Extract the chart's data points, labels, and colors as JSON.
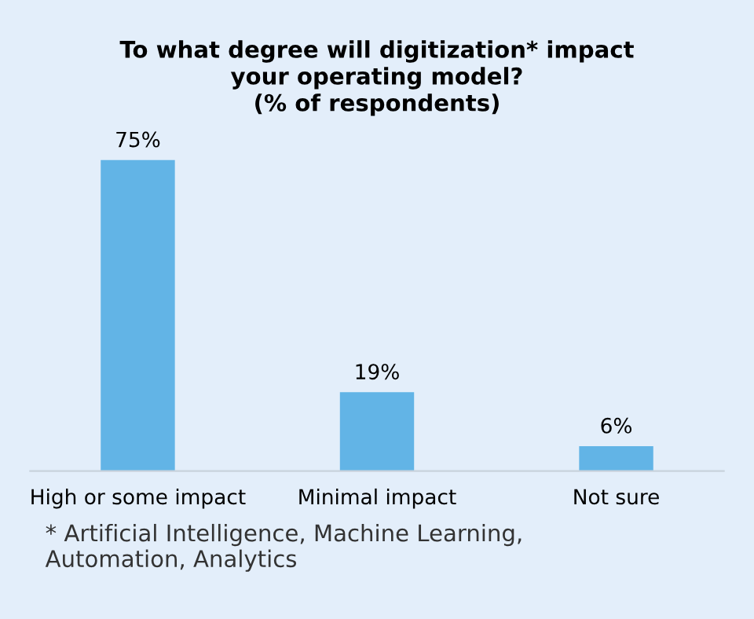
{
  "chart_data": {
    "type": "bar",
    "title": "To what degree will digitization* impact\nyour operating model?\n(% of respondents)",
    "categories": [
      "High or some impact",
      "Minimal impact",
      "Not sure"
    ],
    "values": [
      75,
      19,
      6
    ],
    "value_labels": [
      "75%",
      "19%",
      "6%"
    ],
    "color": "#62b4e6",
    "grid": false,
    "legend": false,
    "tick_labels": "x",
    "annotations": [
      "* Artificial Intelligence, Machine Learning,\nAutomation, Analytics"
    ]
  }
}
